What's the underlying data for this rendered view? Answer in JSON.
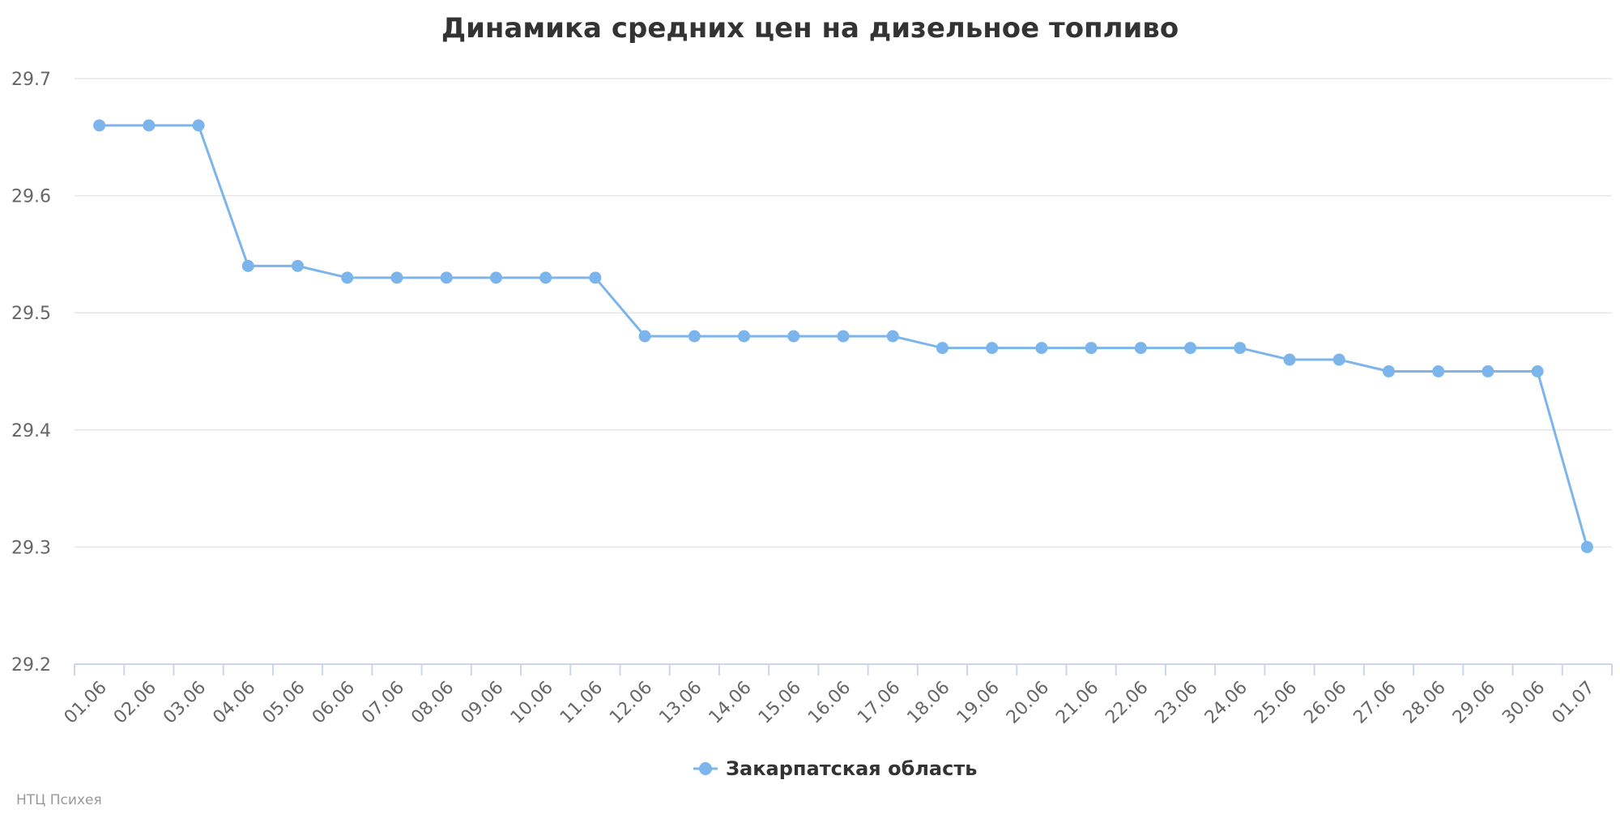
{
  "chart_data": {
    "type": "line",
    "title": "Динамика средних цен на дизельное топливо",
    "xlabel": "",
    "ylabel": "",
    "categories": [
      "01.06",
      "02.06",
      "03.06",
      "04.06",
      "05.06",
      "06.06",
      "07.06",
      "08.06",
      "09.06",
      "10.06",
      "11.06",
      "12.06",
      "13.06",
      "14.06",
      "15.06",
      "16.06",
      "17.06",
      "18.06",
      "19.06",
      "20.06",
      "21.06",
      "22.06",
      "23.06",
      "24.06",
      "25.06",
      "26.06",
      "27.06",
      "28.06",
      "29.06",
      "30.06",
      "01.07"
    ],
    "series": [
      {
        "name": "Закарпатская область",
        "color": "#7cb5ec",
        "values": [
          29.66,
          29.66,
          29.66,
          29.54,
          29.54,
          29.53,
          29.53,
          29.53,
          29.53,
          29.53,
          29.53,
          29.48,
          29.48,
          29.48,
          29.48,
          29.48,
          29.48,
          29.47,
          29.47,
          29.47,
          29.47,
          29.47,
          29.47,
          29.47,
          29.46,
          29.46,
          29.45,
          29.45,
          29.45,
          29.45,
          29.3
        ]
      }
    ],
    "ylim": [
      29.2,
      29.7
    ],
    "yticks": [
      "29.2",
      "29.3",
      "29.4",
      "29.5",
      "29.6",
      "29.7"
    ],
    "grid": true,
    "legend": "bottom-center"
  },
  "credit": "НТЦ Психея"
}
